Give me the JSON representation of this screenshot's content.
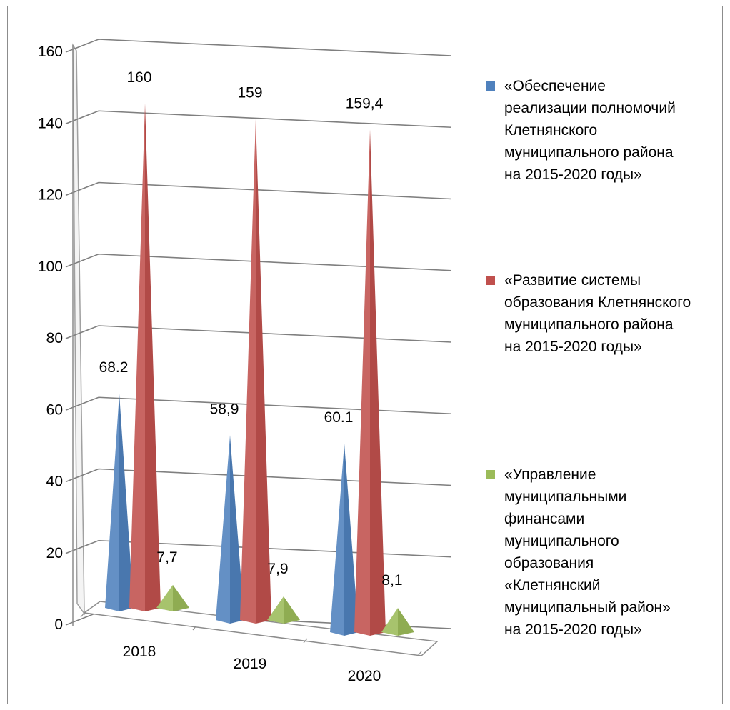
{
  "chart_data": {
    "type": "bar",
    "subtype": "3d-pyramid",
    "title": "",
    "xlabel": "",
    "ylabel": "",
    "ylim": [
      0,
      160
    ],
    "yticks": [
      "0",
      "20",
      "40",
      "60",
      "80",
      "100",
      "120",
      "140",
      "160"
    ],
    "categories": [
      "2018",
      "2019",
      "2020"
    ],
    "grid": true,
    "legend_position": "right",
    "series": [
      {
        "name": "«Обеспечение\nреализации полномочий\nКлетнянского\nмуниципального района\nна 2015-2020 годы»",
        "color": "#4f81bd",
        "values": [
          68.2,
          58.9,
          60.1
        ],
        "data_labels": [
          "68.2",
          "58,9",
          "60.1"
        ]
      },
      {
        "name": "«Развитие системы\nобразования Клетнянского\nмуниципального района\nна 2015-2020  годы»",
        "color": "#c0504d",
        "values": [
          160,
          159,
          159.4
        ],
        "data_labels": [
          "160",
          "159",
          "159,4"
        ]
      },
      {
        "name": "«Управление\nмуниципальными\nфинансами\nмуниципального\nобразования\n«Клетнянский\nмуниципальный район»\nна 2015-2020 годы»",
        "color": "#9bbb59",
        "values": [
          7.7,
          7.9,
          8.1
        ],
        "data_labels": [
          "7,7",
          "7,9",
          "8,1"
        ]
      }
    ]
  }
}
